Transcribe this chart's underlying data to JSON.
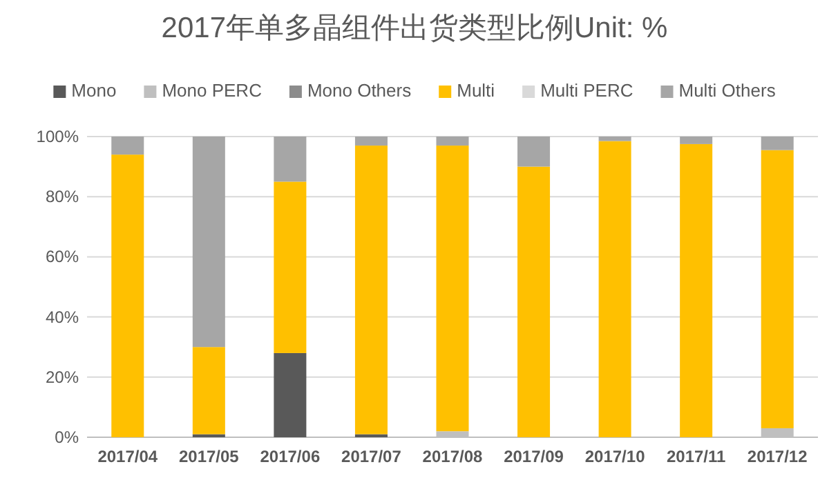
{
  "chart_data": {
    "type": "bar",
    "title": "2017年单多晶组件出货类型比例Unit: %",
    "stacked": true,
    "legend": "top",
    "grid": "y",
    "categories": [
      "2017/04",
      "2017/05",
      "2017/06",
      "2017/07",
      "2017/08",
      "2017/09",
      "2017/10",
      "2017/11",
      "2017/12"
    ],
    "ylim": [
      0,
      100
    ],
    "yticks": [
      {
        "value": 0,
        "label": "0%"
      },
      {
        "value": 20,
        "label": "20%"
      },
      {
        "value": 40,
        "label": "40%"
      },
      {
        "value": 60,
        "label": "60%"
      },
      {
        "value": 80,
        "label": "80%"
      },
      {
        "value": 100,
        "label": "100%"
      }
    ],
    "series": [
      {
        "name": "Mono",
        "color": "#595959",
        "values": [
          0,
          1,
          28,
          1,
          0,
          0,
          0,
          0,
          0
        ]
      },
      {
        "name": "Mono PERC",
        "color": "#bfbfbf",
        "values": [
          0,
          0,
          0,
          0,
          2,
          0,
          0,
          0,
          3
        ]
      },
      {
        "name": "Mono Others",
        "color": "#8c8c8c",
        "values": [
          0,
          0,
          0,
          0,
          0,
          0,
          0,
          0,
          0
        ]
      },
      {
        "name": "Multi",
        "color": "#ffc000",
        "values": [
          94,
          29,
          57,
          96,
          95,
          90,
          98.5,
          97.5,
          92.5
        ]
      },
      {
        "name": "Multi PERC",
        "color": "#d9d9d9",
        "values": [
          0,
          0,
          0,
          0,
          0,
          0,
          0,
          0,
          0
        ]
      },
      {
        "name": "Multi Others",
        "color": "#a6a6a6",
        "values": [
          6,
          70,
          15,
          3,
          3,
          10,
          1.5,
          2.5,
          4.5
        ]
      }
    ]
  }
}
